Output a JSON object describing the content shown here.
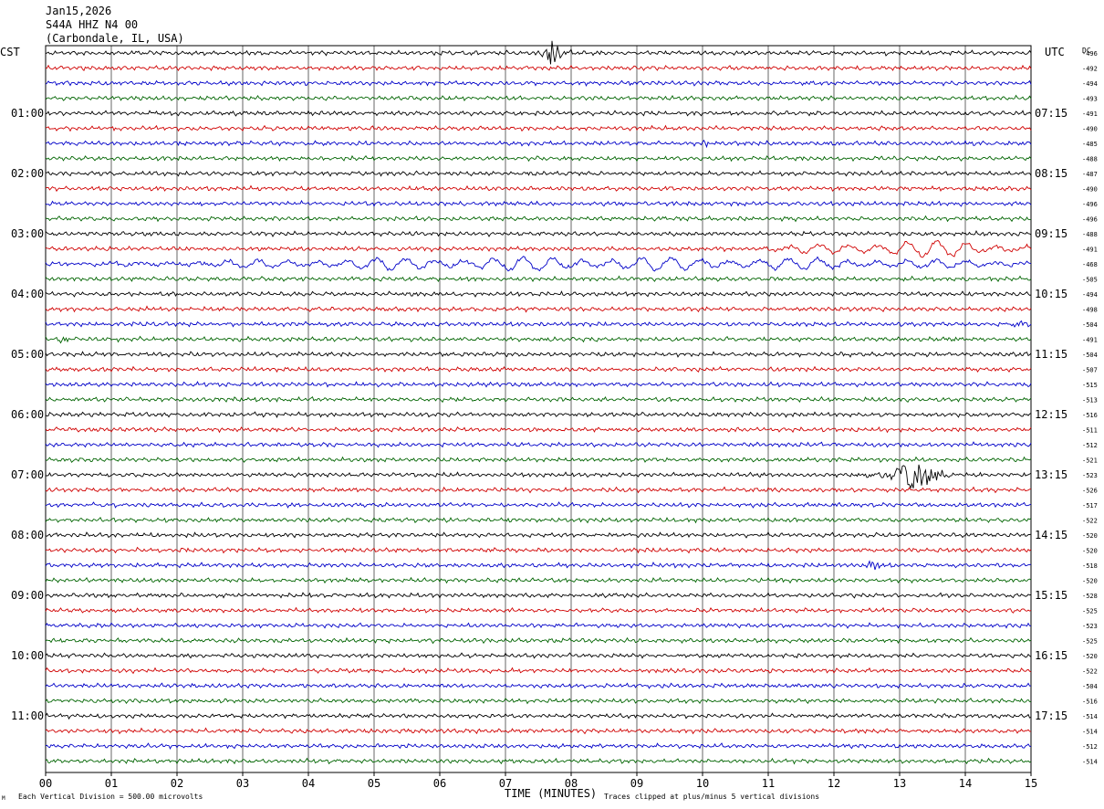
{
  "header": {
    "date": "Jan15,2026",
    "station": "S44A HHZ N4 00",
    "location": "(Carbondale, IL, USA)"
  },
  "left_label": "CST",
  "right_label": "UTC",
  "dc_label": "DC",
  "footer": {
    "scale_note": "Each Vertical Division =  500.00 microvolts",
    "scale_mark": "M",
    "x_axis_title": "TIME (MINUTES)",
    "clip_note": "Traces clipped at plus/minus 5 vertical divisions"
  },
  "colors": {
    "cycle": [
      "#000000",
      "#d00000",
      "#0000c8",
      "#006400"
    ],
    "grid": "#000000"
  },
  "chart_data": {
    "type": "line",
    "title": "",
    "xlabel": "TIME (MINUTES)",
    "ylabel": "",
    "xlim": [
      0,
      15
    ],
    "x_ticks": [
      "00",
      "01",
      "02",
      "03",
      "04",
      "05",
      "06",
      "07",
      "08",
      "09",
      "10",
      "11",
      "12",
      "13",
      "14",
      "15"
    ],
    "trace_count": 48,
    "left_hour_labels": [
      {
        "trace": 4,
        "label": "01:00"
      },
      {
        "trace": 8,
        "label": "02:00"
      },
      {
        "trace": 12,
        "label": "03:00"
      },
      {
        "trace": 16,
        "label": "04:00"
      },
      {
        "trace": 20,
        "label": "05:00"
      },
      {
        "trace": 24,
        "label": "06:00"
      },
      {
        "trace": 28,
        "label": "07:00"
      },
      {
        "trace": 32,
        "label": "08:00"
      },
      {
        "trace": 36,
        "label": "09:00"
      },
      {
        "trace": 40,
        "label": "10:00"
      },
      {
        "trace": 44,
        "label": "11:00"
      }
    ],
    "right_hour_labels": [
      {
        "trace": 4,
        "label": "07:15"
      },
      {
        "trace": 8,
        "label": "08:15"
      },
      {
        "trace": 12,
        "label": "09:15"
      },
      {
        "trace": 16,
        "label": "10:15"
      },
      {
        "trace": 20,
        "label": "11:15"
      },
      {
        "trace": 24,
        "label": "12:15"
      },
      {
        "trace": 28,
        "label": "13:15"
      },
      {
        "trace": 32,
        "label": "14:15"
      },
      {
        "trace": 36,
        "label": "15:15"
      },
      {
        "trace": 40,
        "label": "16:15"
      },
      {
        "trace": 44,
        "label": "17:15"
      }
    ],
    "dc_values": [
      "-496",
      "-492",
      "-494",
      "-493",
      "-491",
      "-490",
      "-485",
      "-488",
      "-487",
      "-490",
      "-496",
      "-496",
      "-488",
      "-491",
      "-468",
      "-505",
      "-494",
      "-498",
      "-504",
      "-491",
      "-504",
      "-507",
      "-515",
      "-513",
      "-516",
      "-511",
      "-512",
      "-521",
      "-523",
      "-526",
      "-517",
      "-522",
      "-520",
      "-520",
      "-518",
      "-520",
      "-528",
      "-525",
      "-523",
      "-525",
      "-520",
      "-522",
      "-504",
      "-516",
      "-514",
      "-514",
      "-512",
      "-514"
    ],
    "base_amplitude": 0.12,
    "events": [
      {
        "trace": 0,
        "start_min": 7.5,
        "end_min": 8.0,
        "peak_min": 7.72,
        "amplitude": 1.3,
        "style": "burst"
      },
      {
        "trace": 6,
        "start_min": 10.0,
        "end_min": 10.2,
        "peak_min": 10.05,
        "amplitude": 0.35,
        "style": "burst"
      },
      {
        "trace": 13,
        "start_min": 10.8,
        "end_min": 15.0,
        "peak_min": 13.4,
        "amplitude": 0.55,
        "style": "swell"
      },
      {
        "trace": 14,
        "start_min": 0.0,
        "end_min": 15.0,
        "peak_min": 7.0,
        "amplitude": 0.45,
        "style": "swell"
      },
      {
        "trace": 18,
        "start_min": 14.4,
        "end_min": 15.0,
        "peak_min": 14.8,
        "amplitude": 0.3,
        "style": "burst"
      },
      {
        "trace": 19,
        "start_min": 0.0,
        "end_min": 0.5,
        "peak_min": 0.2,
        "amplitude": 0.25,
        "style": "burst"
      },
      {
        "trace": 28,
        "start_min": 12.1,
        "end_min": 13.9,
        "peak_min": 13.25,
        "amplitude": 1.0,
        "style": "burst"
      },
      {
        "trace": 34,
        "start_min": 12.4,
        "end_min": 12.9,
        "peak_min": 12.6,
        "amplitude": 0.3,
        "style": "burst"
      }
    ]
  }
}
